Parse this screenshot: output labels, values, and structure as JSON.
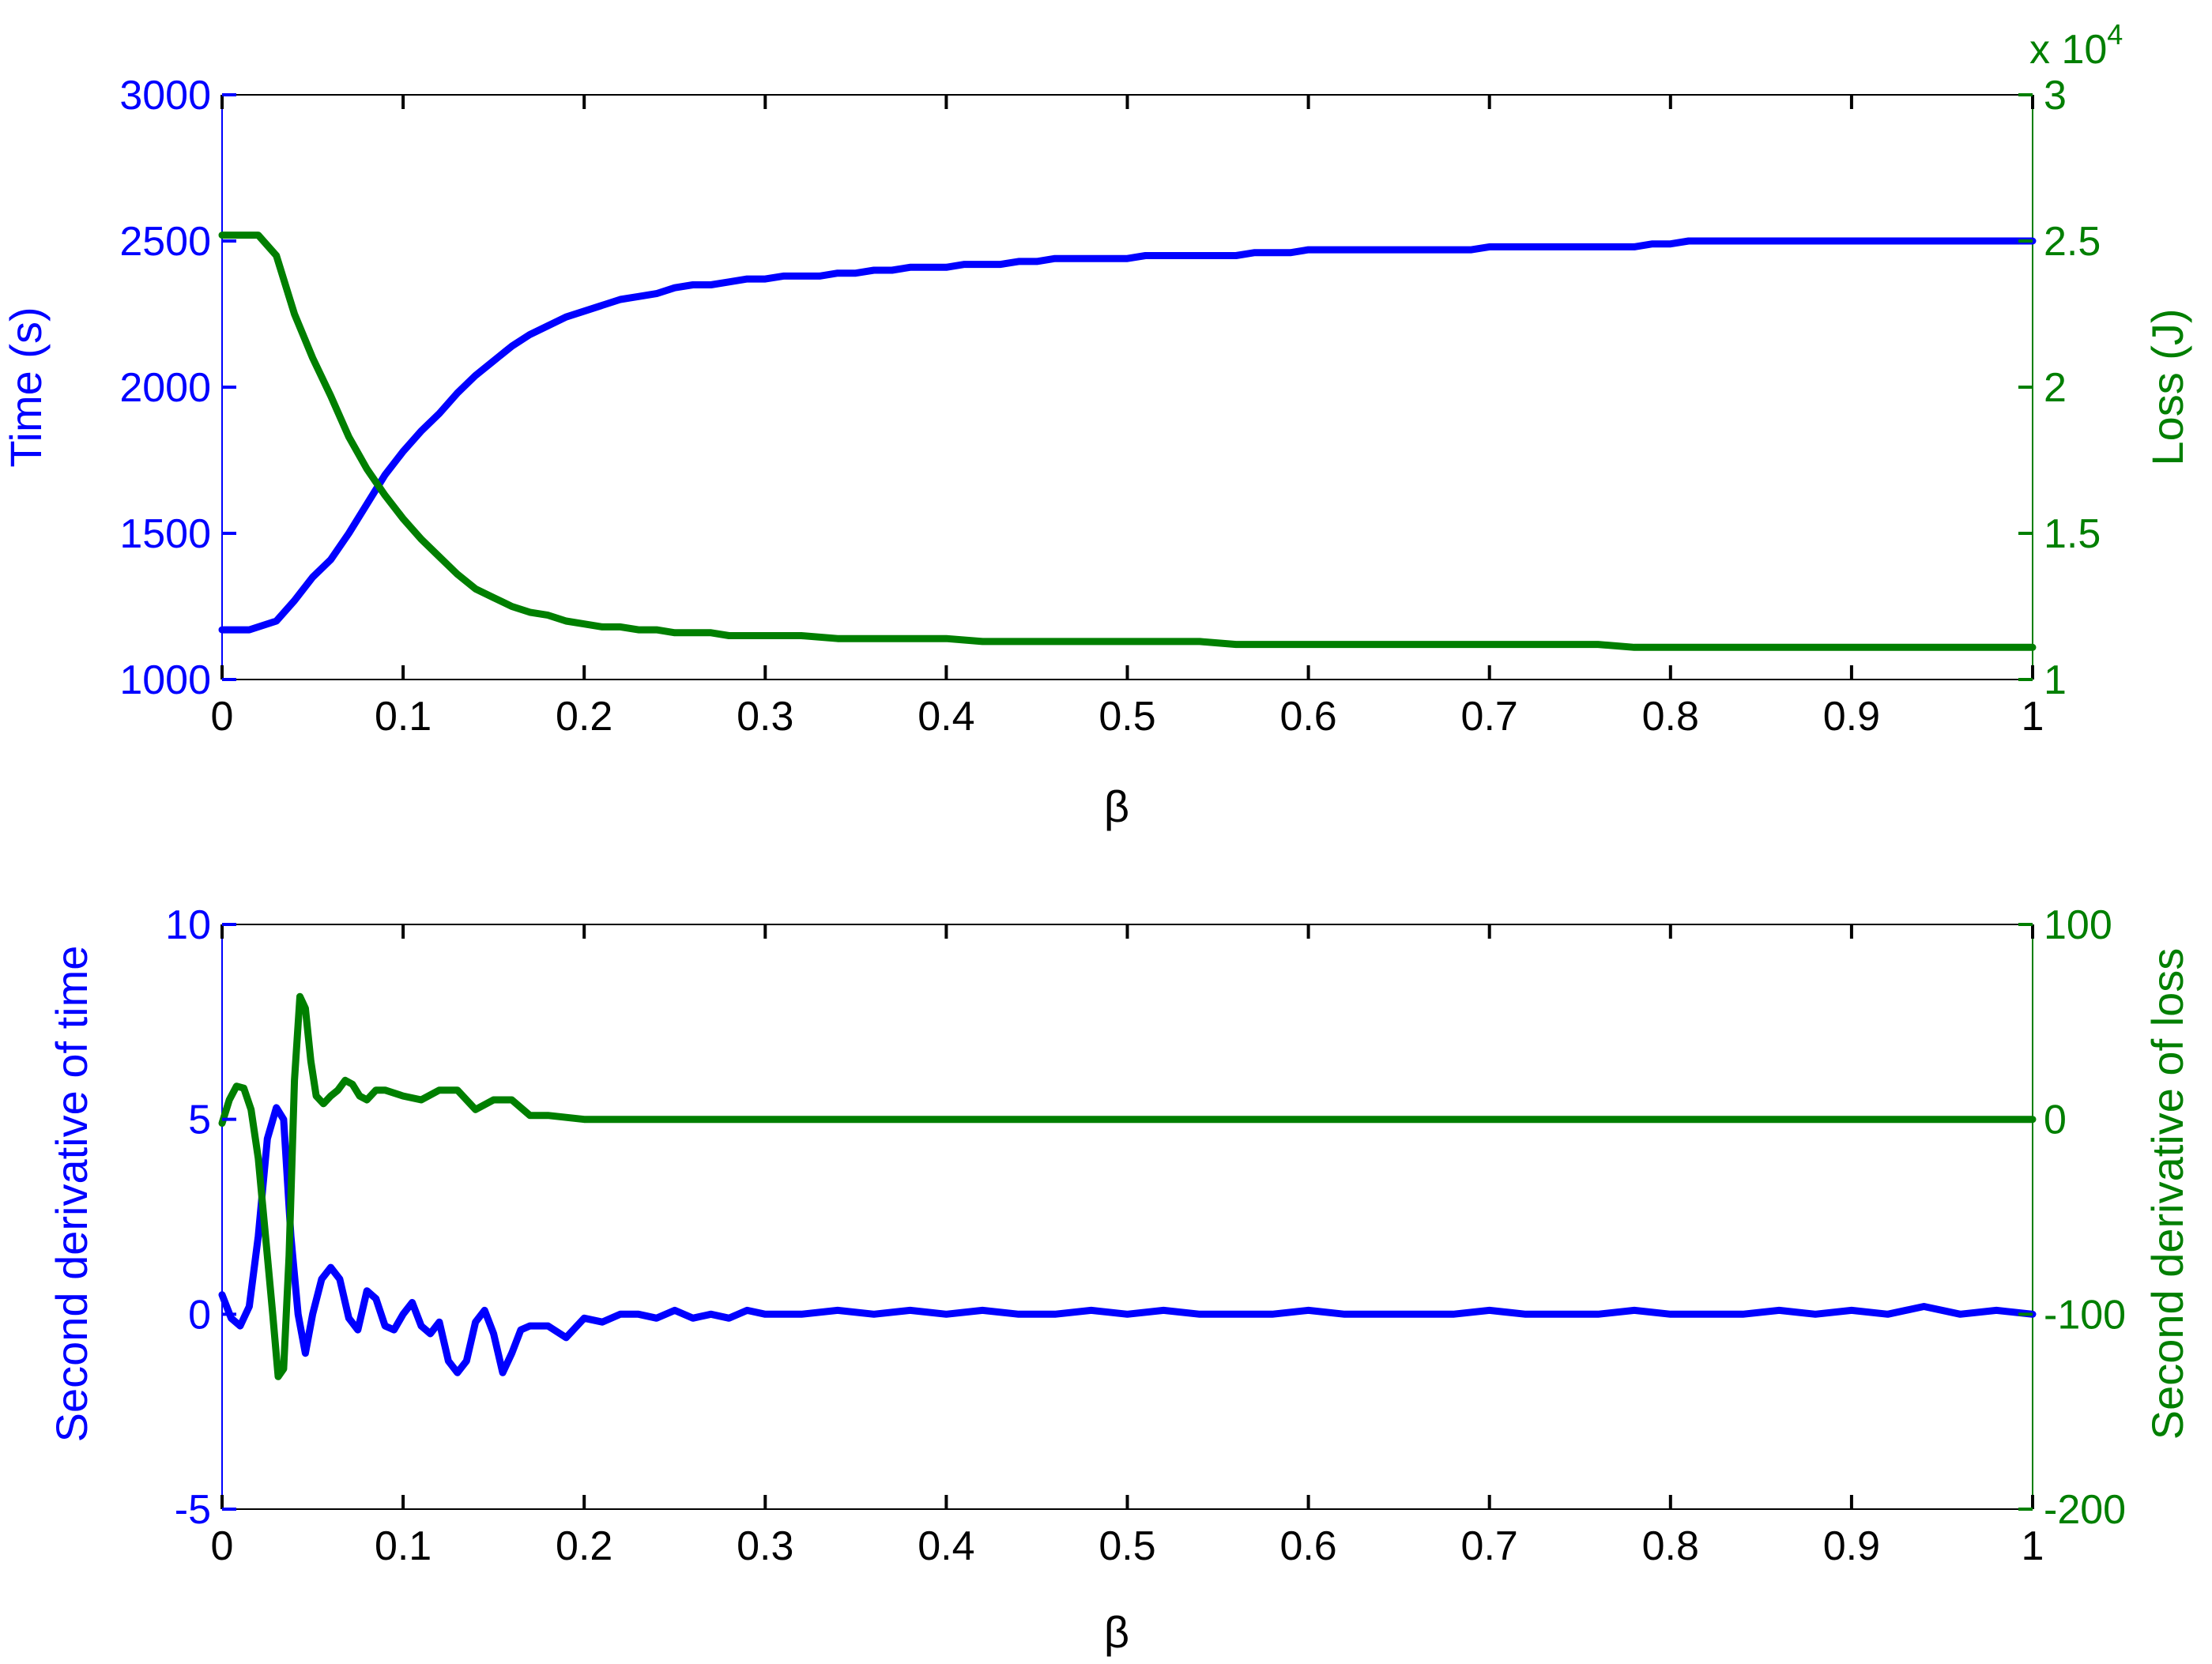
{
  "figure": {
    "colors": {
      "time": "#0000ff",
      "loss": "#007f00",
      "axis": "#000000",
      "background": "#ffffff"
    }
  },
  "chart_data": [
    {
      "type": "line",
      "xlabel": "β",
      "ylabel_left": "Time (s)",
      "ylabel_right": "Loss (J)",
      "right_multiplier_label": "x 10",
      "right_multiplier_exponent": "4",
      "xlim": [
        0,
        1
      ],
      "ylim_left": [
        1000,
        3000
      ],
      "ylim_right": [
        10000,
        30000
      ],
      "x_ticks": [
        "0",
        "0.1",
        "0.2",
        "0.3",
        "0.4",
        "0.5",
        "0.6",
        "0.7",
        "0.8",
        "0.9",
        "1"
      ],
      "y_ticks_left": [
        "1000",
        "1500",
        "2000",
        "2500",
        "3000"
      ],
      "y_ticks_right": [
        "1",
        "1.5",
        "2",
        "2.5",
        "3"
      ],
      "grid": false,
      "series": [
        {
          "axis": "left",
          "color": "#0000ff",
          "x": [
            0,
            0.015,
            0.03,
            0.04,
            0.05,
            0.06,
            0.07,
            0.08,
            0.09,
            0.1,
            0.11,
            0.12,
            0.13,
            0.14,
            0.15,
            0.16,
            0.17,
            0.18,
            0.19,
            0.2,
            0.21,
            0.22,
            0.23,
            0.24,
            0.25,
            0.26,
            0.27,
            0.28,
            0.29,
            0.3,
            0.31,
            0.32,
            0.33,
            0.34,
            0.35,
            0.36,
            0.37,
            0.38,
            0.39,
            0.4,
            0.41,
            0.42,
            0.43,
            0.44,
            0.45,
            0.46,
            0.47,
            0.48,
            0.49,
            0.5,
            0.51,
            0.52,
            0.53,
            0.54,
            0.55,
            0.56,
            0.57,
            0.58,
            0.59,
            0.6,
            0.61,
            0.62,
            0.63,
            0.64,
            0.65,
            0.66,
            0.67,
            0.68,
            0.69,
            0.7,
            0.71,
            0.72,
            0.73,
            0.74,
            0.75,
            0.76,
            0.77,
            0.78,
            0.79,
            0.8,
            0.81,
            0.82,
            0.83,
            0.84,
            0.85,
            0.86,
            0.87,
            0.88,
            0.89,
            0.9,
            0.91,
            0.92,
            0.93,
            0.94,
            0.95,
            0.96,
            0.97,
            0.98,
            0.99,
            1.0
          ],
          "y": [
            1170,
            1170,
            1200,
            1270,
            1350,
            1410,
            1500,
            1600,
            1700,
            1780,
            1850,
            1910,
            1980,
            2040,
            2090,
            2140,
            2180,
            2210,
            2240,
            2260,
            2280,
            2300,
            2310,
            2320,
            2340,
            2350,
            2350,
            2360,
            2370,
            2370,
            2380,
            2380,
            2380,
            2390,
            2390,
            2400,
            2400,
            2410,
            2410,
            2410,
            2420,
            2420,
            2420,
            2430,
            2430,
            2440,
            2440,
            2440,
            2440,
            2440,
            2450,
            2450,
            2450,
            2450,
            2450,
            2450,
            2460,
            2460,
            2460,
            2470,
            2470,
            2470,
            2470,
            2470,
            2470,
            2470,
            2470,
            2470,
            2470,
            2480,
            2480,
            2480,
            2480,
            2480,
            2480,
            2480,
            2480,
            2480,
            2490,
            2490,
            2500,
            2500,
            2500,
            2500,
            2500,
            2500,
            2500,
            2500,
            2500,
            2500,
            2500,
            2500,
            2500,
            2500,
            2500,
            2500,
            2500,
            2500,
            2500,
            2500
          ]
        },
        {
          "axis": "right",
          "color": "#007f00",
          "x": [
            0,
            0.01,
            0.02,
            0.03,
            0.04,
            0.05,
            0.06,
            0.07,
            0.08,
            0.09,
            0.1,
            0.11,
            0.12,
            0.13,
            0.14,
            0.15,
            0.16,
            0.17,
            0.18,
            0.19,
            0.2,
            0.21,
            0.22,
            0.23,
            0.24,
            0.25,
            0.26,
            0.27,
            0.28,
            0.29,
            0.3,
            0.32,
            0.34,
            0.36,
            0.38,
            0.4,
            0.42,
            0.45,
            0.5,
            0.54,
            0.56,
            0.6,
            0.65,
            0.7,
            0.76,
            0.78,
            0.8,
            0.9,
            1.0
          ],
          "y": [
            25200,
            25200,
            25200,
            24500,
            22500,
            21000,
            19700,
            18300,
            17200,
            16300,
            15500,
            14800,
            14200,
            13600,
            13100,
            12800,
            12500,
            12300,
            12200,
            12000,
            11900,
            11800,
            11800,
            11700,
            11700,
            11600,
            11600,
            11600,
            11500,
            11500,
            11500,
            11500,
            11400,
            11400,
            11400,
            11400,
            11300,
            11300,
            11300,
            11300,
            11200,
            11200,
            11200,
            11200,
            11200,
            11100,
            11100,
            11100,
            11100
          ]
        }
      ]
    },
    {
      "type": "line",
      "xlabel": "β",
      "ylabel_left": "Second derivative of time",
      "ylabel_right": "Second derivative of loss",
      "xlim": [
        0,
        1
      ],
      "ylim_left": [
        -5,
        10
      ],
      "ylim_right": [
        -200,
        100
      ],
      "x_ticks": [
        "0",
        "0.1",
        "0.2",
        "0.3",
        "0.4",
        "0.5",
        "0.6",
        "0.7",
        "0.8",
        "0.9",
        "1"
      ],
      "y_ticks_left": [
        "-5",
        "0",
        "5",
        "10"
      ],
      "y_ticks_right": [
        "-200",
        "-100",
        "0",
        "100"
      ],
      "grid": false,
      "series": [
        {
          "axis": "left",
          "color": "#0000ff",
          "x": [
            0,
            0.005,
            0.01,
            0.015,
            0.02,
            0.025,
            0.03,
            0.034,
            0.038,
            0.042,
            0.046,
            0.05,
            0.055,
            0.06,
            0.065,
            0.07,
            0.075,
            0.08,
            0.085,
            0.09,
            0.095,
            0.1,
            0.105,
            0.11,
            0.115,
            0.12,
            0.125,
            0.13,
            0.135,
            0.14,
            0.145,
            0.15,
            0.155,
            0.16,
            0.165,
            0.17,
            0.18,
            0.19,
            0.2,
            0.21,
            0.22,
            0.23,
            0.24,
            0.25,
            0.26,
            0.27,
            0.28,
            0.29,
            0.3,
            0.32,
            0.34,
            0.36,
            0.38,
            0.4,
            0.42,
            0.44,
            0.46,
            0.48,
            0.5,
            0.52,
            0.54,
            0.56,
            0.58,
            0.6,
            0.62,
            0.64,
            0.66,
            0.68,
            0.7,
            0.72,
            0.74,
            0.76,
            0.78,
            0.8,
            0.82,
            0.84,
            0.86,
            0.88,
            0.9,
            0.92,
            0.94,
            0.96,
            0.98,
            1.0
          ],
          "y": [
            0.5,
            -0.1,
            -0.3,
            0.2,
            2.0,
            4.5,
            5.3,
            5.0,
            2.0,
            0.0,
            -1.0,
            0.0,
            0.9,
            1.2,
            0.9,
            -0.1,
            -0.4,
            0.6,
            0.4,
            -0.3,
            -0.4,
            0.0,
            0.3,
            -0.3,
            -0.5,
            -0.2,
            -1.2,
            -1.5,
            -1.2,
            -0.2,
            0.1,
            -0.5,
            -1.5,
            -1.0,
            -0.4,
            -0.3,
            -0.3,
            -0.6,
            -0.1,
            -0.2,
            0.0,
            0.0,
            -0.1,
            0.1,
            -0.1,
            0.0,
            -0.1,
            0.1,
            0.0,
            0.0,
            0.1,
            0.0,
            0.1,
            0.0,
            0.1,
            0.0,
            0.0,
            0.1,
            0.0,
            0.1,
            0.0,
            0.0,
            0.0,
            0.1,
            0.0,
            0.0,
            0.0,
            0.0,
            0.1,
            0.0,
            0.0,
            0.0,
            0.1,
            0.0,
            0.0,
            0.0,
            0.1,
            0.0,
            0.1,
            0.0,
            0.2,
            0.0,
            0.1,
            0.0
          ]
        },
        {
          "axis": "right",
          "color": "#007f00",
          "x": [
            0,
            0.004,
            0.008,
            0.012,
            0.016,
            0.02,
            0.024,
            0.028,
            0.031,
            0.034,
            0.037,
            0.04,
            0.043,
            0.046,
            0.049,
            0.052,
            0.056,
            0.06,
            0.064,
            0.068,
            0.072,
            0.076,
            0.08,
            0.085,
            0.09,
            0.1,
            0.11,
            0.12,
            0.13,
            0.14,
            0.15,
            0.16,
            0.17,
            0.18,
            0.2,
            0.3,
            0.4,
            0.5,
            0.6,
            0.7,
            0.8,
            0.9,
            1.0
          ],
          "y": [
            -2,
            10,
            17,
            16,
            5,
            -20,
            -60,
            -100,
            -132,
            -128,
            -70,
            20,
            63,
            57,
            30,
            12,
            8,
            12,
            15,
            20,
            18,
            12,
            10,
            15,
            15,
            12,
            10,
            15,
            15,
            5,
            10,
            10,
            2,
            2,
            0,
            0,
            0,
            0,
            0,
            0,
            0,
            0,
            0
          ]
        }
      ]
    }
  ]
}
